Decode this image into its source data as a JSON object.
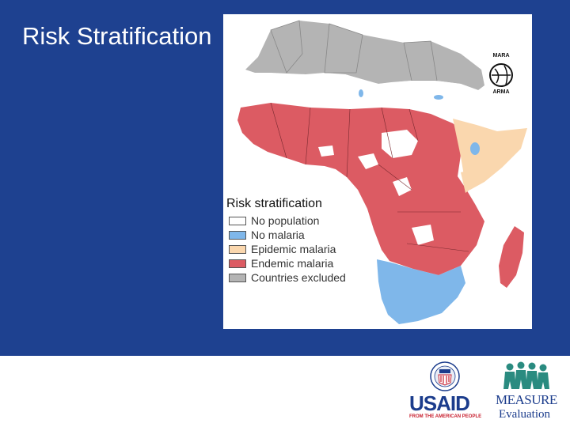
{
  "slide": {
    "title": "Risk Stratification",
    "band_color": "#1e4190"
  },
  "map": {
    "legend": {
      "title": "Risk stratification",
      "items": [
        {
          "label": "No population",
          "color": "#ffffff"
        },
        {
          "label": "No malaria",
          "color": "#7fb7ea"
        },
        {
          "label": "Epidemic malaria",
          "color": "#fad7ae"
        },
        {
          "label": "Endemic malaria",
          "color": "#dc5b63"
        },
        {
          "label": "Countries excluded",
          "color": "#b4b4b4"
        }
      ]
    },
    "logo": {
      "top": "MARA",
      "bottom": "ARMA"
    }
  },
  "footer": {
    "usaid": {
      "name": "USAID",
      "tagline": "FROM THE AMERICAN PEOPLE",
      "red": "#c8202f",
      "blue": "#1b3c8c"
    },
    "measure": {
      "name": "MEASURE",
      "sub": "Evaluation",
      "teal": "#2a8b80"
    }
  }
}
